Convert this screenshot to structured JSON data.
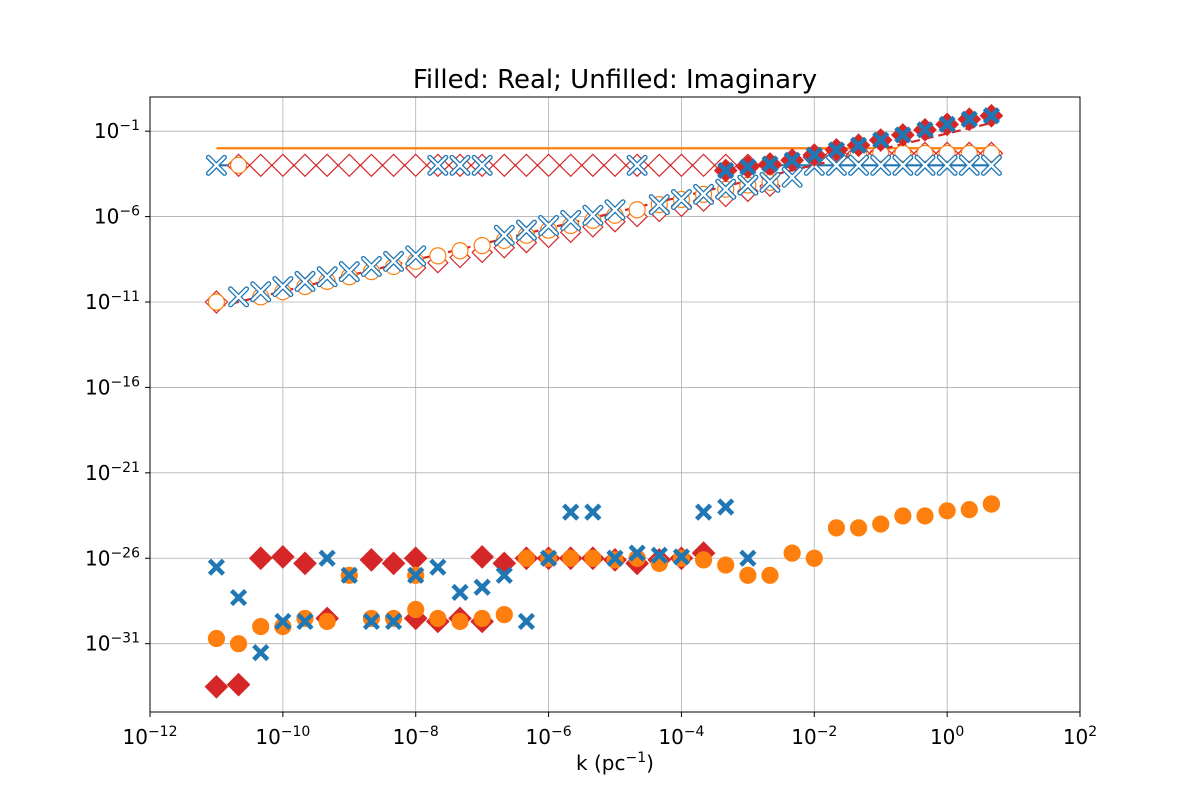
{
  "chart_data": {
    "type": "scatter",
    "title": "Filled: Real; Unfilled: Imaginary",
    "xlabel": "k (pc",
    "xlabel_sup": "−1",
    "xlabel_close": ")",
    "ylabel": "",
    "x_scale": "log",
    "y_scale": "log",
    "xlim": [
      1e-12,
      100
    ],
    "ylim": [
      1e-35,
      10.0
    ],
    "grid": true,
    "x_ticks": [
      {
        "base": "10",
        "exp": "−12",
        "value": 1e-12
      },
      {
        "base": "10",
        "exp": "−10",
        "value": 1e-10
      },
      {
        "base": "10",
        "exp": "−8",
        "value": 1e-08
      },
      {
        "base": "10",
        "exp": "−6",
        "value": 1e-06
      },
      {
        "base": "10",
        "exp": "−4",
        "value": 0.0001
      },
      {
        "base": "10",
        "exp": "−2",
        "value": 0.01
      },
      {
        "base": "10",
        "exp": "0",
        "value": 1
      },
      {
        "base": "10",
        "exp": "2",
        "value": 100
      }
    ],
    "y_ticks": [
      {
        "base": "10",
        "exp": "−1",
        "value": 0.1
      },
      {
        "base": "10",
        "exp": "−6",
        "value": 1e-06
      },
      {
        "base": "10",
        "exp": "−11",
        "value": 1e-11
      },
      {
        "base": "10",
        "exp": "−16",
        "value": 1e-16
      },
      {
        "base": "10",
        "exp": "−21",
        "value": 1e-21
      },
      {
        "base": "10",
        "exp": "−26",
        "value": 1e-26
      },
      {
        "base": "10",
        "exp": "−31",
        "value": 1e-31
      }
    ],
    "x": [
      1e-11,
      2.154e-11,
      4.642e-11,
      1e-10,
      2.154e-10,
      4.642e-10,
      1e-09,
      2.154e-09,
      4.642e-09,
      1e-08,
      2.154e-08,
      4.642e-08,
      1e-07,
      2.154e-07,
      4.642e-07,
      1e-06,
      2.154e-06,
      4.642e-06,
      1e-05,
      2.154e-05,
      4.642e-05,
      0.0001,
      0.0002154,
      0.0004642,
      0.001,
      0.002154,
      0.004642,
      0.01,
      0.02154,
      0.04642,
      0.1,
      0.2154,
      0.4642,
      1,
      2.154,
      4.642
    ],
    "lines": [
      {
        "color": "#1f77b4",
        "style": "solid",
        "x": [
          1e-11,
          4.642
        ],
        "y": [
          0.001,
          0.001
        ]
      },
      {
        "color": "#ff7f0e",
        "style": "solid",
        "x": [
          1e-11,
          4.642
        ],
        "y": [
          0.01,
          0.01
        ]
      },
      {
        "color": "#d62728",
        "style": "dashed",
        "x": [
          1e-11,
          4.642
        ],
        "y": [
          5e-12,
          0.3
        ]
      }
    ],
    "series": [
      {
        "color": "#d62728",
        "marker": "diamond",
        "filled": false,
        "size": 11,
        "y": [
          1e-11,
          0.001,
          0.001,
          0.001,
          0.001,
          0.001,
          0.001,
          0.001,
          0.001,
          0.001,
          0.001,
          0.001,
          0.001,
          0.001,
          0.001,
          0.001,
          0.001,
          0.001,
          0.001,
          0.001,
          0.001,
          0.001,
          0.001,
          0.001,
          0.001,
          0.001,
          0.002,
          0.003,
          0.004,
          0.005,
          0.005,
          0.005,
          0.005,
          0.005,
          0.005,
          0.005
        ]
      },
      {
        "color": "#d62728",
        "marker": "diamond",
        "filled": false,
        "size": 10,
        "y": [
          null,
          null,
          null,
          null,
          null,
          null,
          null,
          null,
          null,
          1e-09,
          2e-09,
          4e-09,
          8e-09,
          1.5e-08,
          3e-08,
          6e-08,
          1.2e-07,
          2.5e-07,
          5e-07,
          1e-06,
          2e-06,
          4e-06,
          8e-06,
          1.5e-05,
          3e-05,
          6e-05,
          null,
          null,
          null,
          null,
          null,
          null,
          null,
          null,
          null,
          null
        ]
      },
      {
        "color": "#ff7f0e",
        "marker": "circle",
        "filled": false,
        "size": 8,
        "y": [
          1e-11,
          0.001,
          2e-11,
          4e-11,
          8e-11,
          1.6e-10,
          3e-10,
          6e-10,
          1.2e-09,
          2.4e-09,
          5e-09,
          1e-08,
          2e-08,
          4e-08,
          8e-08,
          1.6e-07,
          3e-07,
          6e-07,
          1.2e-06,
          2.5e-06,
          5e-06,
          1e-05,
          2e-05,
          4e-05,
          7e-05,
          0.0001,
          0.002,
          0.003,
          0.004,
          0.005,
          0.005,
          0.005,
          0.005,
          0.005,
          0.005,
          0.005
        ]
      },
      {
        "color": "#1f77b4",
        "marker": "x",
        "filled": false,
        "size": 8,
        "y": [
          0.001,
          2e-11,
          4e-11,
          8e-11,
          1.6e-10,
          3e-10,
          6e-10,
          1.2e-09,
          2.4e-09,
          5e-09,
          0.001,
          0.001,
          0.001,
          8e-08,
          1.6e-07,
          3e-07,
          6e-07,
          1.2e-06,
          2.5e-06,
          0.001,
          5e-06,
          1e-05,
          2e-05,
          4e-05,
          7e-05,
          0.0001,
          0.0002,
          0.001,
          0.001,
          0.001,
          0.001,
          0.001,
          0.001,
          0.001,
          0.001,
          0.001
        ]
      },
      {
        "color": "#d62728",
        "marker": "diamond",
        "filled": true,
        "size": 11,
        "y": [
          null,
          null,
          null,
          null,
          null,
          null,
          null,
          null,
          null,
          null,
          null,
          null,
          null,
          null,
          null,
          null,
          null,
          null,
          null,
          null,
          null,
          null,
          null,
          0.0005,
          0.0008,
          0.0012,
          0.002,
          0.004,
          0.008,
          0.015,
          0.03,
          0.06,
          0.12,
          0.25,
          0.5,
          0.8
        ]
      },
      {
        "color": "#d62728",
        "marker": "diamond",
        "filled": true,
        "size": 11,
        "y": [
          3e-34,
          4e-34,
          1e-26,
          1.2e-26,
          5e-27,
          3e-30,
          null,
          8e-27,
          5e-27,
          1e-26,
          null,
          null,
          1.2e-26,
          5e-27,
          1e-26,
          1e-26,
          1e-26,
          1e-26,
          8e-27,
          5e-27,
          8e-27,
          1e-26,
          2e-26,
          null,
          null,
          null,
          null,
          null,
          null,
          null,
          null,
          null,
          null,
          null,
          null,
          null
        ]
      },
      {
        "color": "#d62728",
        "marker": "diamond",
        "filled": true,
        "size": 11,
        "y": [
          null,
          null,
          null,
          null,
          null,
          null,
          null,
          null,
          null,
          3e-30,
          2e-30,
          3e-30,
          2e-30,
          null,
          null,
          null,
          null,
          null,
          null,
          null,
          null,
          null,
          null,
          null,
          null,
          null,
          null,
          null,
          null,
          null,
          null,
          null,
          null,
          null,
          null,
          null
        ]
      },
      {
        "color": "#ff7f0e",
        "marker": "circle",
        "filled": true,
        "size": 8,
        "y": [
          2e-31,
          1e-31,
          1e-30,
          1e-30,
          3e-30,
          2e-30,
          1e-27,
          3e-30,
          3e-30,
          1e-29,
          3e-30,
          2e-30,
          3e-30,
          5e-30,
          1e-26,
          1e-26,
          1e-26,
          1e-26,
          8e-27,
          1e-26,
          5e-27,
          1e-26,
          8e-27,
          4e-27,
          1e-27,
          1e-27,
          2e-26,
          1e-26,
          6e-25,
          6e-25,
          1e-24,
          3e-24,
          3e-24,
          6e-24,
          7e-24,
          1.5e-23
        ]
      },
      {
        "color": "#ff7f0e",
        "marker": "circle",
        "filled": true,
        "size": 8,
        "y": [
          null,
          null,
          null,
          null,
          null,
          null,
          null,
          null,
          null,
          1e-27,
          null,
          null,
          null,
          null,
          null,
          null,
          null,
          null,
          null,
          null,
          null,
          null,
          null,
          null,
          null,
          null,
          null,
          null,
          null,
          null,
          null,
          null,
          null,
          null,
          null,
          1.5e-23
        ]
      },
      {
        "color": "#1f77b4",
        "marker": "x",
        "filled": true,
        "size": 7,
        "y": [
          3e-27,
          5e-29,
          3e-32,
          2e-30,
          2e-30,
          1e-26,
          1e-27,
          2e-30,
          2e-30,
          1e-27,
          3e-27,
          1e-28,
          2e-28,
          1e-27,
          2e-30,
          1e-26,
          5e-24,
          5e-24,
          1e-26,
          2e-26,
          1.5e-26,
          1.2e-26,
          5e-24,
          1e-23,
          1e-26,
          null,
          null,
          null,
          null,
          null,
          null,
          null,
          null,
          null,
          null,
          null
        ]
      },
      {
        "color": "#1f77b4",
        "marker": "x",
        "filled": true,
        "size": 7,
        "y": [
          null,
          null,
          null,
          null,
          null,
          null,
          null,
          null,
          null,
          null,
          null,
          null,
          null,
          null,
          null,
          null,
          null,
          null,
          null,
          null,
          null,
          null,
          null,
          0.0005,
          0.0008,
          0.0012,
          0.002,
          0.004,
          0.008,
          0.015,
          0.03,
          0.06,
          0.12,
          0.25,
          0.5,
          0.8
        ]
      }
    ]
  }
}
